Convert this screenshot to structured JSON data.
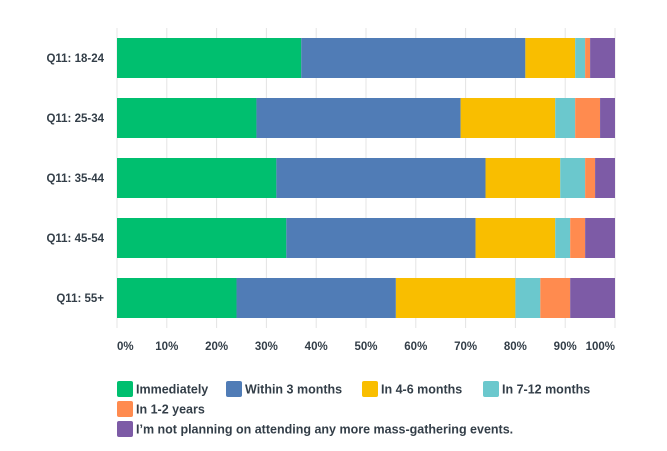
{
  "chart_data": {
    "type": "bar",
    "orientation": "horizontal",
    "stacked": true,
    "normalized": true,
    "categories": [
      "Q11: 18-24",
      "Q11: 25-34",
      "Q11: 35-44",
      "Q11: 45-54",
      "Q11: 55+"
    ],
    "series": [
      {
        "name": "Immediately",
        "color": "#00bf6f",
        "values": [
          37,
          28,
          32,
          34,
          24
        ]
      },
      {
        "name": "Within 3 months",
        "color": "#507cb6",
        "values": [
          45,
          41,
          42,
          38,
          32
        ]
      },
      {
        "name": "In 4-6 months",
        "color": "#f9be00",
        "values": [
          10,
          19,
          15,
          16,
          24
        ]
      },
      {
        "name": "In 7-12 months",
        "color": "#6bc8cd",
        "values": [
          2,
          4,
          5,
          3,
          5
        ]
      },
      {
        "name": "In 1-2 years",
        "color": "#ff8b4f",
        "values": [
          1,
          5,
          2,
          3,
          6
        ]
      },
      {
        "name": "I’m not planning on attending any more mass-gathering events.",
        "color": "#7d5ba6",
        "values": [
          5,
          3,
          4,
          6,
          9
        ]
      }
    ],
    "x_ticks": [
      "0%",
      "10%",
      "20%",
      "30%",
      "40%",
      "50%",
      "60%",
      "70%",
      "80%",
      "90%",
      "100%"
    ],
    "xlim": [
      0,
      100
    ],
    "grid": true,
    "legend_position": "bottom"
  }
}
